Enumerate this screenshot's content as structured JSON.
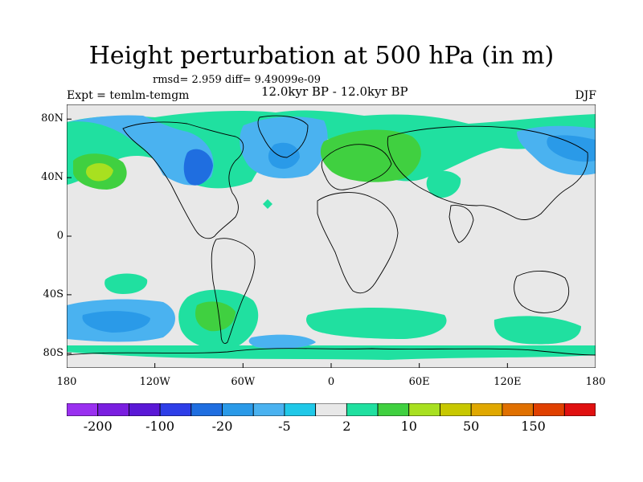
{
  "title": "Height perturbation at 500 hPa (in m)",
  "stats": "rmsd= 2.959 diff= 9.49099e-09",
  "experiment": "Expt = temlm-temgm",
  "period": "12.0kyr BP - 12.0kyr BP",
  "season": "DJF",
  "map": {
    "projection": "cylindrical equidistant",
    "lon_range": [
      -180,
      180
    ],
    "lat_range": [
      -90,
      90
    ],
    "background_color": "#e8e8e8",
    "coastline_color": "#000000",
    "y_ticks": [
      {
        "value": 80,
        "label": "80N"
      },
      {
        "value": 40,
        "label": "40N"
      },
      {
        "value": 0,
        "label": "0"
      },
      {
        "value": -40,
        "label": "40S"
      },
      {
        "value": -80,
        "label": "80S"
      }
    ],
    "x_ticks": [
      {
        "value": -180,
        "label": "180"
      },
      {
        "value": -120,
        "label": "120W"
      },
      {
        "value": -60,
        "label": "60W"
      },
      {
        "value": 0,
        "label": "0"
      },
      {
        "value": 60,
        "label": "60E"
      },
      {
        "value": 120,
        "label": "120E"
      },
      {
        "value": 180,
        "label": "180"
      }
    ]
  },
  "colorbar": {
    "colors": [
      "#9a30f0",
      "#7a1ee0",
      "#5a18d6",
      "#2e3ee8",
      "#1f6ee0",
      "#2a9ae8",
      "#4ab2f0",
      "#20c8e8",
      "#e8e8e8",
      "#20e0a0",
      "#40d040",
      "#a8e020",
      "#c8c800",
      "#e0a800",
      "#e07000",
      "#e04000",
      "#e01010"
    ],
    "labels": [
      {
        "boundary": 1,
        "text": "-200"
      },
      {
        "boundary": 3,
        "text": "-100"
      },
      {
        "boundary": 5,
        "text": "-20"
      },
      {
        "boundary": 7,
        "text": "-5"
      },
      {
        "boundary": 9,
        "text": "2"
      },
      {
        "boundary": 11,
        "text": "10"
      },
      {
        "boundary": 13,
        "text": "50"
      },
      {
        "boundary": 15,
        "text": "150"
      }
    ]
  }
}
